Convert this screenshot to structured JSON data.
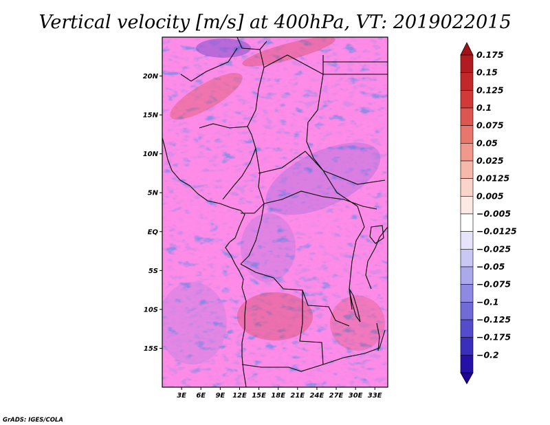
{
  "title": "Vertical velocity [m/s] at 400hPa, VT: 2019022015",
  "credit": "GrADS: IGES/COLA",
  "map": {
    "lon_range": [
      0,
      35
    ],
    "lat_range": [
      -20,
      25
    ],
    "lat_ticks": [
      {
        "label": "20N",
        "lat": 20
      },
      {
        "label": "15N",
        "lat": 15
      },
      {
        "label": "10N",
        "lat": 10
      },
      {
        "label": "5N",
        "lat": 5
      },
      {
        "label": "EQ",
        "lat": 0
      },
      {
        "label": "5S",
        "lat": -5
      },
      {
        "label": "10S",
        "lat": -10
      },
      {
        "label": "15S",
        "lat": -15
      }
    ],
    "lon_ticks": [
      {
        "label": "3E",
        "lon": 3
      },
      {
        "label": "6E",
        "lon": 6
      },
      {
        "label": "9E",
        "lon": 9
      },
      {
        "label": "12E",
        "lon": 12
      },
      {
        "label": "15E",
        "lon": 15
      },
      {
        "label": "18E",
        "lon": 18
      },
      {
        "label": "21E",
        "lon": 21
      },
      {
        "label": "24E",
        "lon": 24
      },
      {
        "label": "27E",
        "lon": 27
      },
      {
        "label": "30E",
        "lon": 30
      },
      {
        "label": "33E",
        "lon": 33
      }
    ]
  },
  "colorbar": {
    "levels": [
      {
        "label": "0.175",
        "color": "#b01c20"
      },
      {
        "label": "0.15",
        "color": "#c2272b"
      },
      {
        "label": "0.125",
        "color": "#d23a3a"
      },
      {
        "label": "0.1",
        "color": "#de5650"
      },
      {
        "label": "0.075",
        "color": "#e8766c"
      },
      {
        "label": "0.05",
        "color": "#f09889"
      },
      {
        "label": "0.025",
        "color": "#f6b8ab"
      },
      {
        "label": "0.0125",
        "color": "#fad3ca"
      },
      {
        "label": "0.005",
        "color": "#fde9e4"
      },
      {
        "label": "−0.005",
        "color": "#ffffff"
      },
      {
        "label": "−0.0125",
        "color": "#e5e4fb"
      },
      {
        "label": "−0.025",
        "color": "#c9c7f4"
      },
      {
        "label": "−0.05",
        "color": "#aba8ec"
      },
      {
        "label": "−0.075",
        "color": "#8e89e3"
      },
      {
        "label": "−0.1",
        "color": "#716bd8"
      },
      {
        "label": "−0.125",
        "color": "#554ccd"
      },
      {
        "label": "−0.175",
        "color": "#3a2ebd"
      },
      {
        "label": "−0.2",
        "color": "#2510a8"
      }
    ],
    "top_color": "#a01418",
    "bottom_color": "#20009a"
  }
}
